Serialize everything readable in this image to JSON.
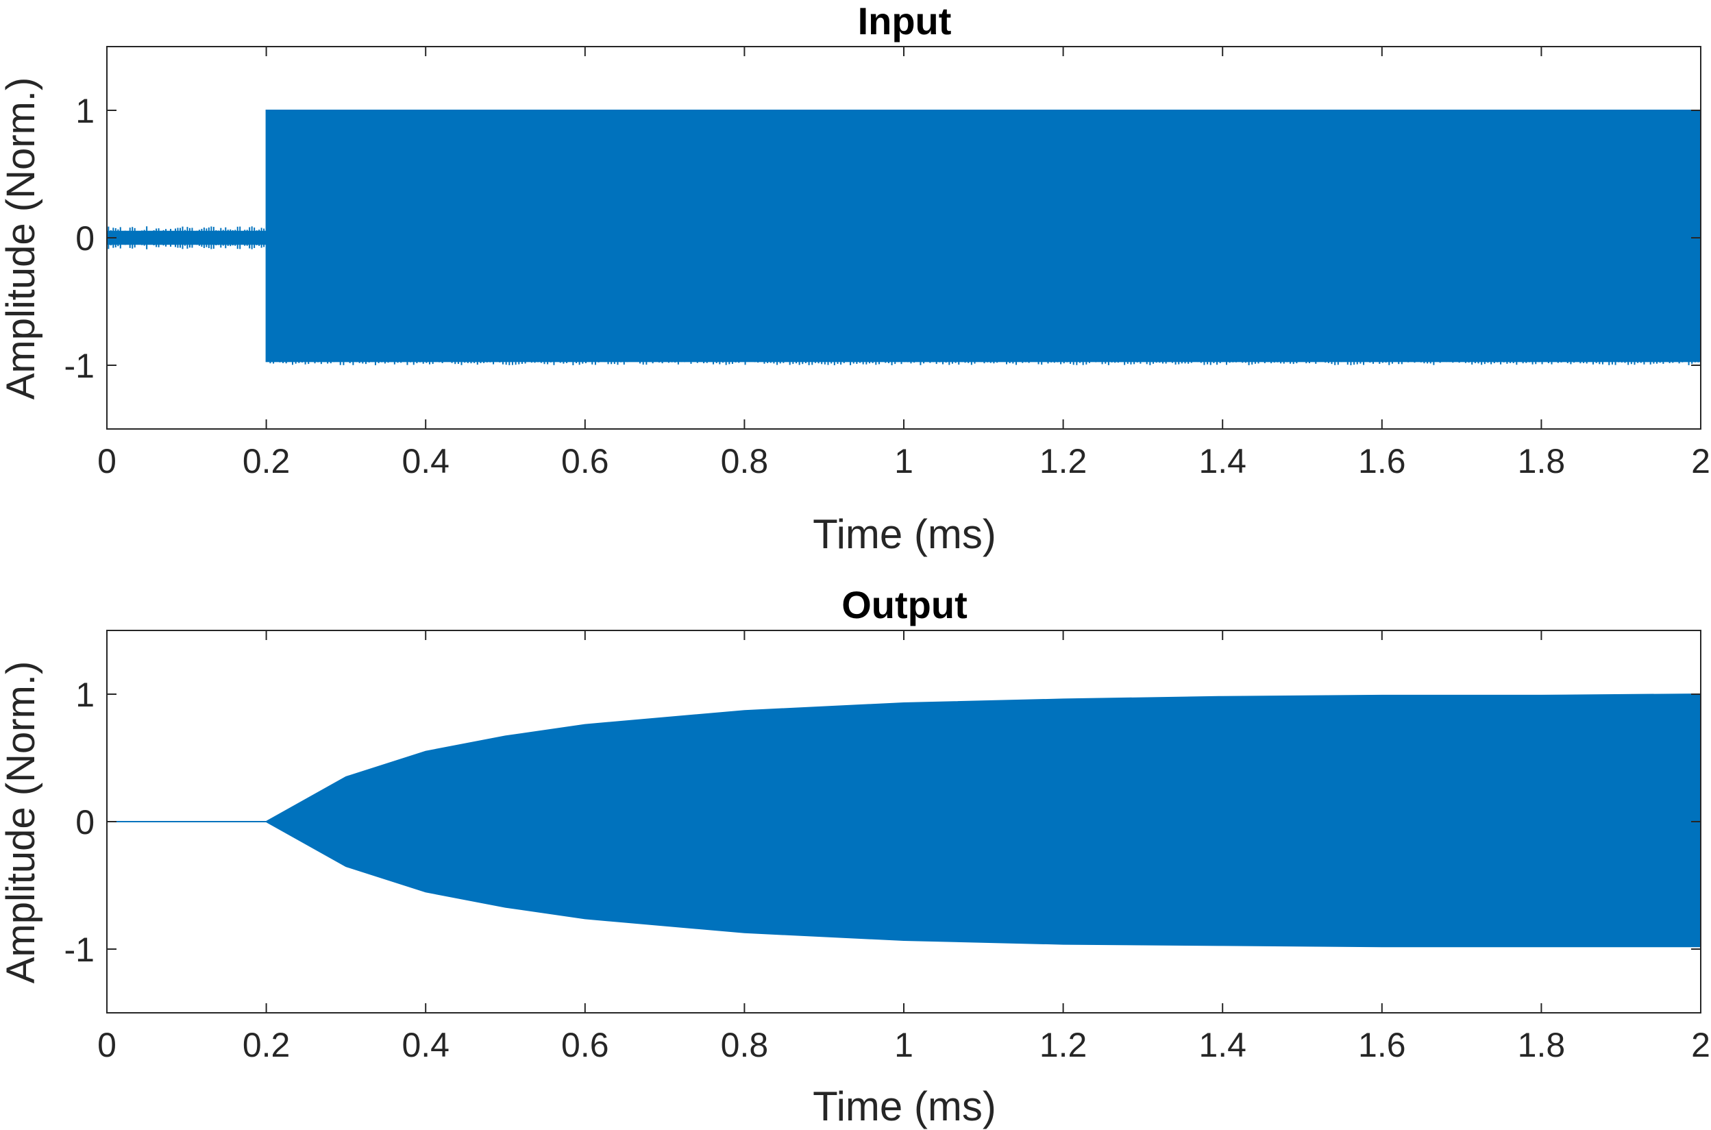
{
  "chart_data": [
    {
      "type": "line",
      "title": "Input",
      "xlabel": "Time (ms)",
      "ylabel": "Amplitude (Norm.)",
      "xlim": [
        0,
        2
      ],
      "ylim": [
        -1.5,
        1.5
      ],
      "xticks": [
        "0",
        "0.2",
        "0.4",
        "0.6",
        "0.8",
        "1",
        "1.2",
        "1.4",
        "1.6",
        "1.8",
        "2"
      ],
      "yticks": [
        "-1",
        "0",
        "1"
      ],
      "color": "#0072BD",
      "grid": false,
      "signal": {
        "description_points": {
          "x": [
            0,
            0.2,
            0.2,
            2
          ],
          "upper": [
            0.05,
            0.05,
            1,
            1
          ],
          "lower": [
            -0.05,
            -0.05,
            -0.97,
            -0.97
          ]
        }
      }
    },
    {
      "type": "line",
      "title": "Output",
      "xlabel": "Time (ms)",
      "ylabel": "Amplitude (Norm.)",
      "xlim": [
        0,
        2
      ],
      "ylim": [
        -1.5,
        1.5
      ],
      "xticks": [
        "0",
        "0.2",
        "0.4",
        "0.6",
        "0.8",
        "1",
        "1.2",
        "1.4",
        "1.6",
        "1.8",
        "2"
      ],
      "yticks": [
        "-1",
        "0",
        "1"
      ],
      "color": "#0072BD",
      "grid": false,
      "signal": {
        "description_points": {
          "x": [
            0,
            0.2,
            0.3,
            0.4,
            0.5,
            0.6,
            0.8,
            1.0,
            1.2,
            1.4,
            1.6,
            1.8,
            2.0
          ],
          "upper": [
            0,
            0,
            0.35,
            0.55,
            0.67,
            0.76,
            0.87,
            0.93,
            0.96,
            0.98,
            0.99,
            0.99,
            1.0
          ],
          "lower": [
            0,
            0,
            -0.35,
            -0.55,
            -0.67,
            -0.76,
            -0.87,
            -0.93,
            -0.96,
            -0.97,
            -0.98,
            -0.98,
            -0.98
          ]
        }
      }
    }
  ]
}
